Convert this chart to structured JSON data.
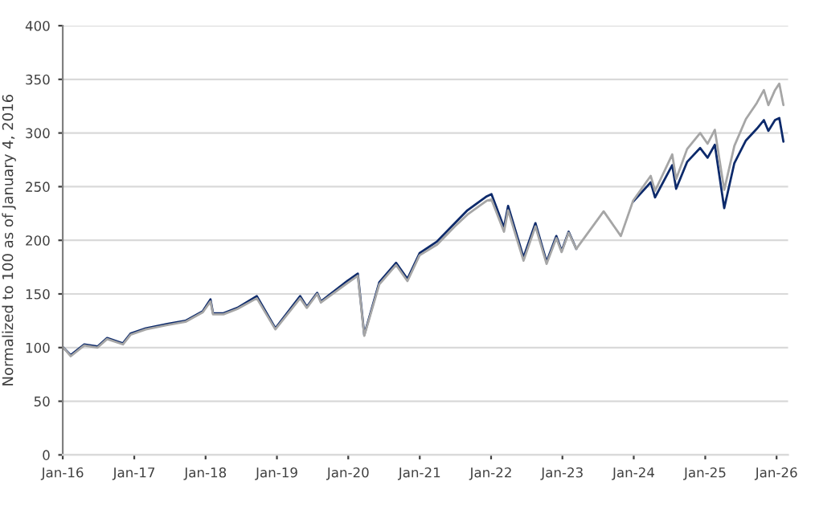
{
  "chart_data": {
    "type": "line",
    "ylabel": "Normalized to 100 as of January 4, 2016",
    "x": [
      "2016-01-04",
      "2016-02-11",
      "2016-04-20",
      "2016-06-27",
      "2016-08-15",
      "2016-11-04",
      "2016-12-13",
      "2017-03-01",
      "2017-06-19",
      "2017-09-20",
      "2017-12-18",
      "2018-01-26",
      "2018-02-08",
      "2018-04-02",
      "2018-06-12",
      "2018-09-20",
      "2018-12-24",
      "2019-04-30",
      "2019-06-03",
      "2019-07-26",
      "2019-08-14",
      "2019-12-27",
      "2020-02-19",
      "2020-03-23",
      "2020-06-08",
      "2020-09-02",
      "2020-10-30",
      "2020-12-31",
      "2021-03-31",
      "2021-06-30",
      "2021-09-02",
      "2021-12-10",
      "2022-01-03",
      "2022-03-08",
      "2022-03-29",
      "2022-06-16",
      "2022-08-16",
      "2022-10-12",
      "2022-12-01",
      "2022-12-28",
      "2023-02-02",
      "2023-03-13",
      "2023-07-31",
      "2023-10-27",
      "2023-12-29",
      "2024-03-28",
      "2024-04-19",
      "2024-07-16",
      "2024-08-05",
      "2024-09-30",
      "2024-12-06",
      "2025-01-13",
      "2025-02-19",
      "2025-04-08",
      "2025-05-30",
      "2025-07-28",
      "2025-09-22",
      "2025-10-28",
      "2025-11-20",
      "2025-12-24",
      "2026-01-15",
      "2026-02-05"
    ],
    "series": [
      {
        "color": "#0d2a6b",
        "values": [
          100,
          93,
          103,
          101,
          109,
          104,
          113,
          118,
          122,
          125,
          134,
          145,
          132,
          132,
          137,
          148,
          118,
          148,
          138,
          151,
          143,
          162,
          169,
          112,
          161,
          179,
          164,
          188,
          199,
          216,
          228,
          241,
          243,
          212,
          232,
          184,
          216,
          180,
          204,
          190,
          208,
          192,
          null,
          null,
          236,
          254,
          240,
          270,
          248,
          273,
          286,
          277,
          289,
          230,
          272,
          293,
          304,
          312,
          302,
          312,
          314,
          292
        ]
      },
      {
        "color": "#a6a6a6",
        "values": [
          100,
          92,
          102,
          100,
          108,
          103,
          112,
          117,
          121,
          124,
          133,
          143,
          131,
          131,
          136,
          146,
          117,
          146,
          137,
          150,
          142,
          160,
          167,
          111,
          159,
          177,
          162,
          186,
          196,
          213,
          224,
          237,
          238,
          208,
          228,
          181,
          213,
          178,
          202,
          189,
          207,
          192,
          227,
          204,
          237,
          260,
          246,
          280,
          257,
          285,
          300,
          290,
          303,
          247,
          288,
          313,
          328,
          340,
          326,
          340,
          346,
          326
        ]
      }
    ],
    "xlim": [
      "2016-01-01",
      "2026-03-01"
    ],
    "xticks": [
      {
        "value": "2016-01-01",
        "label": "Jan-16"
      },
      {
        "value": "2017-01-01",
        "label": "Jan-17"
      },
      {
        "value": "2018-01-01",
        "label": "Jan-18"
      },
      {
        "value": "2019-01-01",
        "label": "Jan-19"
      },
      {
        "value": "2020-01-01",
        "label": "Jan-20"
      },
      {
        "value": "2021-01-01",
        "label": "Jan-21"
      },
      {
        "value": "2022-01-01",
        "label": "Jan-22"
      },
      {
        "value": "2023-01-01",
        "label": "Jan-23"
      },
      {
        "value": "2024-01-01",
        "label": "Jan-24"
      },
      {
        "value": "2025-01-01",
        "label": "Jan-25"
      },
      {
        "value": "2026-01-01",
        "label": "Jan-26"
      }
    ],
    "ylim": [
      0,
      400
    ],
    "yticks": [
      0,
      50,
      100,
      150,
      200,
      250,
      300,
      350,
      400
    ],
    "grid": "y",
    "line_style": "solid"
  }
}
